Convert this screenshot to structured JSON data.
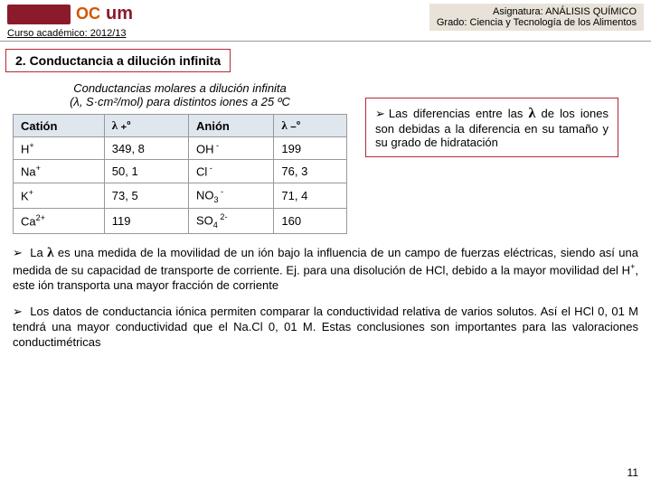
{
  "header": {
    "curso_label": "Curso académico:",
    "curso_value": "2012/13",
    "asig_label": "Asignatura: ANÁLISIS QUÍMICO",
    "grado_label": "Grado: Ciencia y Tecnología de los Alimentos",
    "ocw": "OC",
    "um": "um"
  },
  "section_title": "2. Conductancia a dilución infinita",
  "table": {
    "caption_line1": "Conductancias molares a dilución infinita",
    "caption_line2": "(λ, S·cm²/mol) para distintos iones a 25 ºC",
    "head_cation": "Catión",
    "head_lambda_plus": "λ ₊º",
    "head_anion": "Anión",
    "head_lambda_minus": "λ ₋º",
    "rows": [
      {
        "cation": "H",
        "cation_sup": "+",
        "lp": "349, 8",
        "anion": "OH",
        "anion_sup": " -",
        "lm": "199"
      },
      {
        "cation": "Na",
        "cation_sup": "+",
        "lp": "50, 1",
        "anion": "Cl",
        "anion_sup": " -",
        "lm": "76, 3"
      },
      {
        "cation": "K",
        "cation_sup": "+",
        "lp": "73, 5",
        "anion": "NO",
        "anion_sub": "3",
        "anion_sup": " -",
        "lm": "71, 4"
      },
      {
        "cation": "Ca",
        "cation_sup": "2+",
        "lp": "119",
        "anion": "SO",
        "anion_sub": "4",
        "anion_sup": " 2-",
        "lm": "160"
      }
    ]
  },
  "side_note": "Las diferencias entre las λ de los iones son debidas a la diferencia en su tamaño y su grado de hidratación",
  "para1": "La λ es una medida de la movilidad de un ión bajo la influencia de un campo de fuerzas eléctricas, siendo así una medida de su capacidad de transporte de corriente. Ej. para una disolución de HCl, debido a la mayor movilidad del H⁺, este ión transporta una mayor fracción de corriente",
  "para2": "Los datos de conductancia iónica permiten comparar la conductividad relativa de varios solutos. Así el HCl 0, 01 M tendrá una mayor conductividad que el Na.Cl 0, 01 M. Estas conclusiones son importantes para las valoraciones conductimétricas",
  "page_num": "11",
  "bullet": "➢",
  "colors": {
    "accent_red": "#8b1a2b",
    "border_red": "#b02a37",
    "th_bg": "#dfe6ee",
    "header_right_bg": "#e8e2d8"
  }
}
